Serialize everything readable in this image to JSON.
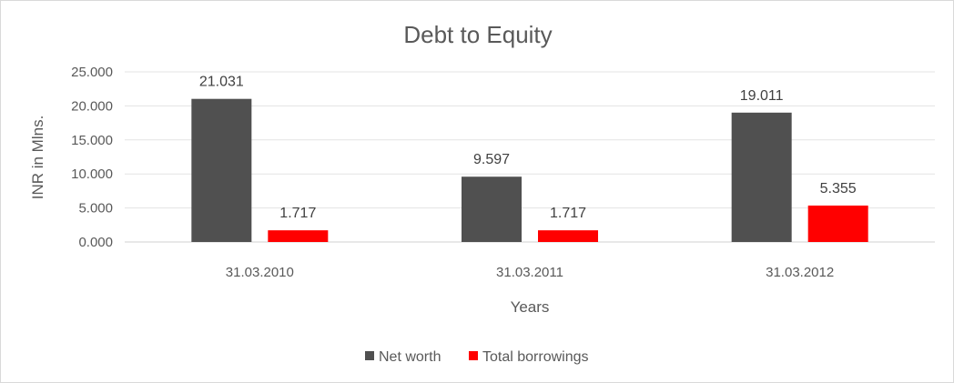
{
  "chart_data": {
    "type": "bar",
    "title": "Debt to Equity",
    "xlabel": "Years",
    "ylabel": "INR in Mlns.",
    "categories": [
      "31.03.2010",
      "31.03.2011",
      "31.03.2012"
    ],
    "ylim": [
      0,
      25
    ],
    "yticks": [
      "0.000",
      "5.000",
      "10.000",
      "15.000",
      "20.000",
      "25.000"
    ],
    "grid": true,
    "legend_position": "bottom",
    "series": [
      {
        "name": "Net worth",
        "color": "#505050",
        "values": [
          21.031,
          9.597,
          19.011
        ],
        "labels": [
          "21.031",
          "9.597",
          "19.011"
        ]
      },
      {
        "name": "Total borrowings",
        "color": "#ff0000",
        "values": [
          1.717,
          1.717,
          5.355
        ],
        "labels": [
          "1.717",
          "1.717",
          "5.355"
        ]
      }
    ]
  }
}
